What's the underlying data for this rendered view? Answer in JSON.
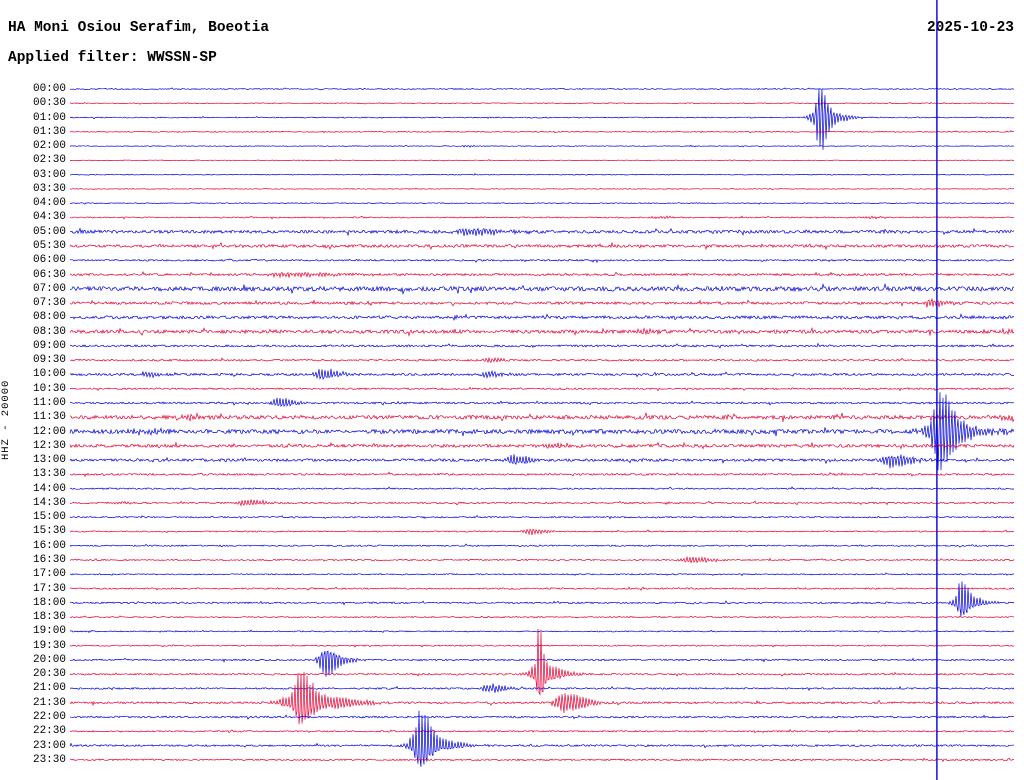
{
  "header": {
    "station_title": "HA Moni Osiou Serafim, Boeotia",
    "date": "2025-10-23",
    "filter_label": "Applied filter: WWSSN-SP"
  },
  "y_axis": {
    "label": "HHZ - 20000"
  },
  "chart_data": {
    "type": "line",
    "subtype": "helicorder-seismogram",
    "title": "HA Moni Osiou Serafim, Boeotia",
    "date": "2025-10-23",
    "filter": "WWSSN-SP",
    "channel": "HHZ",
    "scale": 20000,
    "row_minutes": 30,
    "grid": false,
    "legend": false,
    "colors": {
      "even_rows": "#0000dd",
      "odd_rows": "#e50033"
    },
    "rows": [
      {
        "label": "00:00",
        "noise": 0.5
      },
      {
        "label": "00:30",
        "noise": 0.45
      },
      {
        "label": "01:00",
        "noise": 0.5
      },
      {
        "label": "01:30",
        "noise": 0.45
      },
      {
        "label": "02:00",
        "noise": 0.35
      },
      {
        "label": "02:30",
        "noise": 0.35
      },
      {
        "label": "03:00",
        "noise": 0.45
      },
      {
        "label": "03:30",
        "noise": 0.35
      },
      {
        "label": "04:00",
        "noise": 0.45
      },
      {
        "label": "04:30",
        "noise": 0.6
      },
      {
        "label": "05:00",
        "noise": 1.5
      },
      {
        "label": "05:30",
        "noise": 1.4
      },
      {
        "label": "06:00",
        "noise": 0.8
      },
      {
        "label": "06:30",
        "noise": 1.1
      },
      {
        "label": "07:00",
        "noise": 2.2
      },
      {
        "label": "07:30",
        "noise": 1.3
      },
      {
        "label": "08:00",
        "noise": 1.5
      },
      {
        "label": "08:30",
        "noise": 1.7
      },
      {
        "label": "09:00",
        "noise": 1.0
      },
      {
        "label": "09:30",
        "noise": 0.9
      },
      {
        "label": "10:00",
        "noise": 1.1
      },
      {
        "label": "10:30",
        "noise": 0.8
      },
      {
        "label": "11:00",
        "noise": 0.9
      },
      {
        "label": "11:30",
        "noise": 1.9
      },
      {
        "label": "12:00",
        "noise": 2.1
      },
      {
        "label": "12:30",
        "noise": 1.5
      },
      {
        "label": "13:00",
        "noise": 1.3
      },
      {
        "label": "13:30",
        "noise": 0.9
      },
      {
        "label": "14:00",
        "noise": 0.7
      },
      {
        "label": "14:30",
        "noise": 0.8
      },
      {
        "label": "15:00",
        "noise": 0.7
      },
      {
        "label": "15:30",
        "noise": 0.6
      },
      {
        "label": "16:00",
        "noise": 0.7
      },
      {
        "label": "16:30",
        "noise": 0.7
      },
      {
        "label": "17:00",
        "noise": 0.6
      },
      {
        "label": "17:30",
        "noise": 0.7
      },
      {
        "label": "18:00",
        "noise": 0.8
      },
      {
        "label": "18:30",
        "noise": 0.6
      },
      {
        "label": "19:00",
        "noise": 0.55
      },
      {
        "label": "19:30",
        "noise": 0.6
      },
      {
        "label": "20:00",
        "noise": 0.8
      },
      {
        "label": "20:30",
        "noise": 0.8
      },
      {
        "label": "21:00",
        "noise": 0.8
      },
      {
        "label": "21:30",
        "noise": 1.0
      },
      {
        "label": "22:00",
        "noise": 0.9
      },
      {
        "label": "22:30",
        "noise": 0.7
      },
      {
        "label": "23:00",
        "noise": 0.9
      },
      {
        "label": "23:30",
        "noise": 0.8
      }
    ],
    "events": [
      {
        "row": "01:00",
        "t_min": 23.8,
        "amp": 34,
        "w_min": 0.2
      },
      {
        "row": "01:00",
        "t_min": 23.8,
        "amp": 11,
        "w_min": 0.6
      },
      {
        "row": "02:00",
        "t_min": 12.6,
        "amp": 1.2,
        "w_min": 0.3
      },
      {
        "row": "04:30",
        "t_min": 18.6,
        "amp": 1.5,
        "w_min": 0.5
      },
      {
        "row": "04:30",
        "t_min": 25.4,
        "amp": 1.3,
        "w_min": 0.4
      },
      {
        "row": "05:00",
        "t_min": 12.7,
        "amp": 4.5,
        "w_min": 0.9
      },
      {
        "row": "06:30",
        "t_min": 6.8,
        "amp": 2.5,
        "w_min": 1.5
      },
      {
        "row": "07:30",
        "t_min": 27.3,
        "amp": 5,
        "w_min": 0.5
      },
      {
        "row": "08:30",
        "t_min": 18.1,
        "amp": 2.2,
        "w_min": 0.5
      },
      {
        "row": "08:30",
        "t_min": 29.6,
        "amp": 2.4,
        "w_min": 0.35
      },
      {
        "row": "09:30",
        "t_min": 13.3,
        "amp": 2.2,
        "w_min": 0.4
      },
      {
        "row": "10:00",
        "t_min": 2.5,
        "amp": 3,
        "w_min": 0.35
      },
      {
        "row": "10:00",
        "t_min": 8.0,
        "amp": 7,
        "w_min": 0.45
      },
      {
        "row": "10:00",
        "t_min": 13.3,
        "amp": 3.5,
        "w_min": 0.4
      },
      {
        "row": "11:00",
        "t_min": 6.6,
        "amp": 6,
        "w_min": 0.45
      },
      {
        "row": "11:30",
        "t_min": 3.7,
        "amp": 3,
        "w_min": 0.5
      },
      {
        "row": "11:30",
        "t_min": 29.6,
        "amp": 3.2,
        "w_min": 0.35
      },
      {
        "row": "12:00",
        "t_min": 2.1,
        "amp": 2.5,
        "w_min": 0.8
      },
      {
        "row": "12:00",
        "t_min": 27.6,
        "amp": 38,
        "w_min": 0.35
      },
      {
        "row": "12:00",
        "t_min": 27.6,
        "amp": 14,
        "w_min": 1.0
      },
      {
        "row": "12:30",
        "t_min": 15.1,
        "amp": 2.6,
        "w_min": 0.5
      },
      {
        "row": "13:00",
        "t_min": 14.1,
        "amp": 6.5,
        "w_min": 0.5
      },
      {
        "row": "13:00",
        "t_min": 26.1,
        "amp": 8,
        "w_min": 0.55
      },
      {
        "row": "14:30",
        "t_min": 1.6,
        "amp": 1.8,
        "w_min": 0.3
      },
      {
        "row": "14:30",
        "t_min": 5.6,
        "amp": 4,
        "w_min": 0.45
      },
      {
        "row": "15:30",
        "t_min": 14.6,
        "amp": 3.5,
        "w_min": 0.4
      },
      {
        "row": "16:30",
        "t_min": 19.7,
        "amp": 3.5,
        "w_min": 0.55
      },
      {
        "row": "18:00",
        "t_min": 28.3,
        "amp": 16,
        "w_min": 0.2
      },
      {
        "row": "18:00",
        "t_min": 28.3,
        "amp": 9,
        "w_min": 0.55
      },
      {
        "row": "20:00",
        "t_min": 8.1,
        "amp": 13,
        "w_min": 0.25
      },
      {
        "row": "20:00",
        "t_min": 8.1,
        "amp": 8,
        "w_min": 0.55
      },
      {
        "row": "20:30",
        "t_min": 14.9,
        "amp": 40,
        "w_min": 0.12
      },
      {
        "row": "20:30",
        "t_min": 14.9,
        "amp": 13,
        "w_min": 0.6
      },
      {
        "row": "21:00",
        "t_min": 13.3,
        "amp": 5,
        "w_min": 0.45
      },
      {
        "row": "21:30",
        "t_min": 7.3,
        "amp": 26,
        "w_min": 0.3
      },
      {
        "row": "21:30",
        "t_min": 7.3,
        "amp": 12,
        "w_min": 1.2
      },
      {
        "row": "21:30",
        "t_min": 15.7,
        "amp": 12,
        "w_min": 0.6
      },
      {
        "row": "23:00",
        "t_min": 11.1,
        "amp": 28,
        "w_min": 0.3
      },
      {
        "row": "23:00",
        "t_min": 11.1,
        "amp": 12,
        "w_min": 0.8
      }
    ],
    "full_height_line": {
      "t_min": 27.55,
      "color": "#0000dd"
    }
  }
}
